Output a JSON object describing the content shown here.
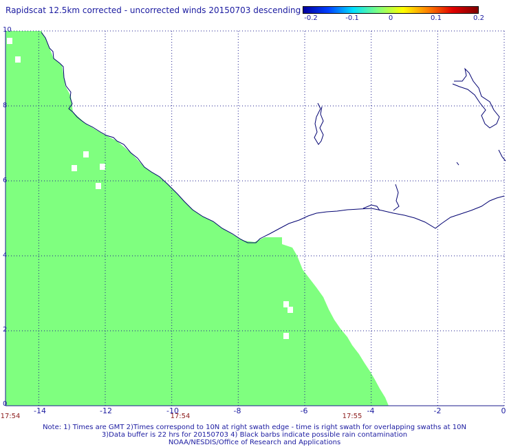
{
  "title": "Rapidscat 12.5km corrected - uncorrected winds 20150703 descending",
  "colorbar": {
    "ticks": [
      "-0.2",
      "-0.1",
      "0",
      "0.1",
      "0.2"
    ],
    "colors": [
      "#0000a0",
      "#0040ff",
      "#00e0ff",
      "#80ff80",
      "#ffff00",
      "#ff8000",
      "#e00000",
      "#800000"
    ]
  },
  "map": {
    "lon_range": [
      -15,
      0
    ],
    "lat_range": [
      0,
      10
    ],
    "swath_color": "#7fff7f",
    "coast_color": "#000070",
    "grid_color": "#1a1a8c"
  },
  "axes": {
    "y_ticks": [
      "10",
      "8",
      "6",
      "4",
      "2",
      "0"
    ],
    "x_ticks": [
      "-14",
      "-12",
      "-10",
      "-8",
      "-6",
      "-4",
      "-2",
      "0"
    ],
    "time_labels": [
      "17:54",
      "17:54",
      "17:55"
    ]
  },
  "notes": [
    "Note: 1) Times are GMT 2)Times correspond to 10N at right swath edge - time is right swath for overlapping swaths at 10N",
    "3)Data buffer is 22 hrs for 20150703 4) Black barbs indicate possible rain contamination",
    "NOAA/NESDIS/Office of Research and Applications"
  ]
}
